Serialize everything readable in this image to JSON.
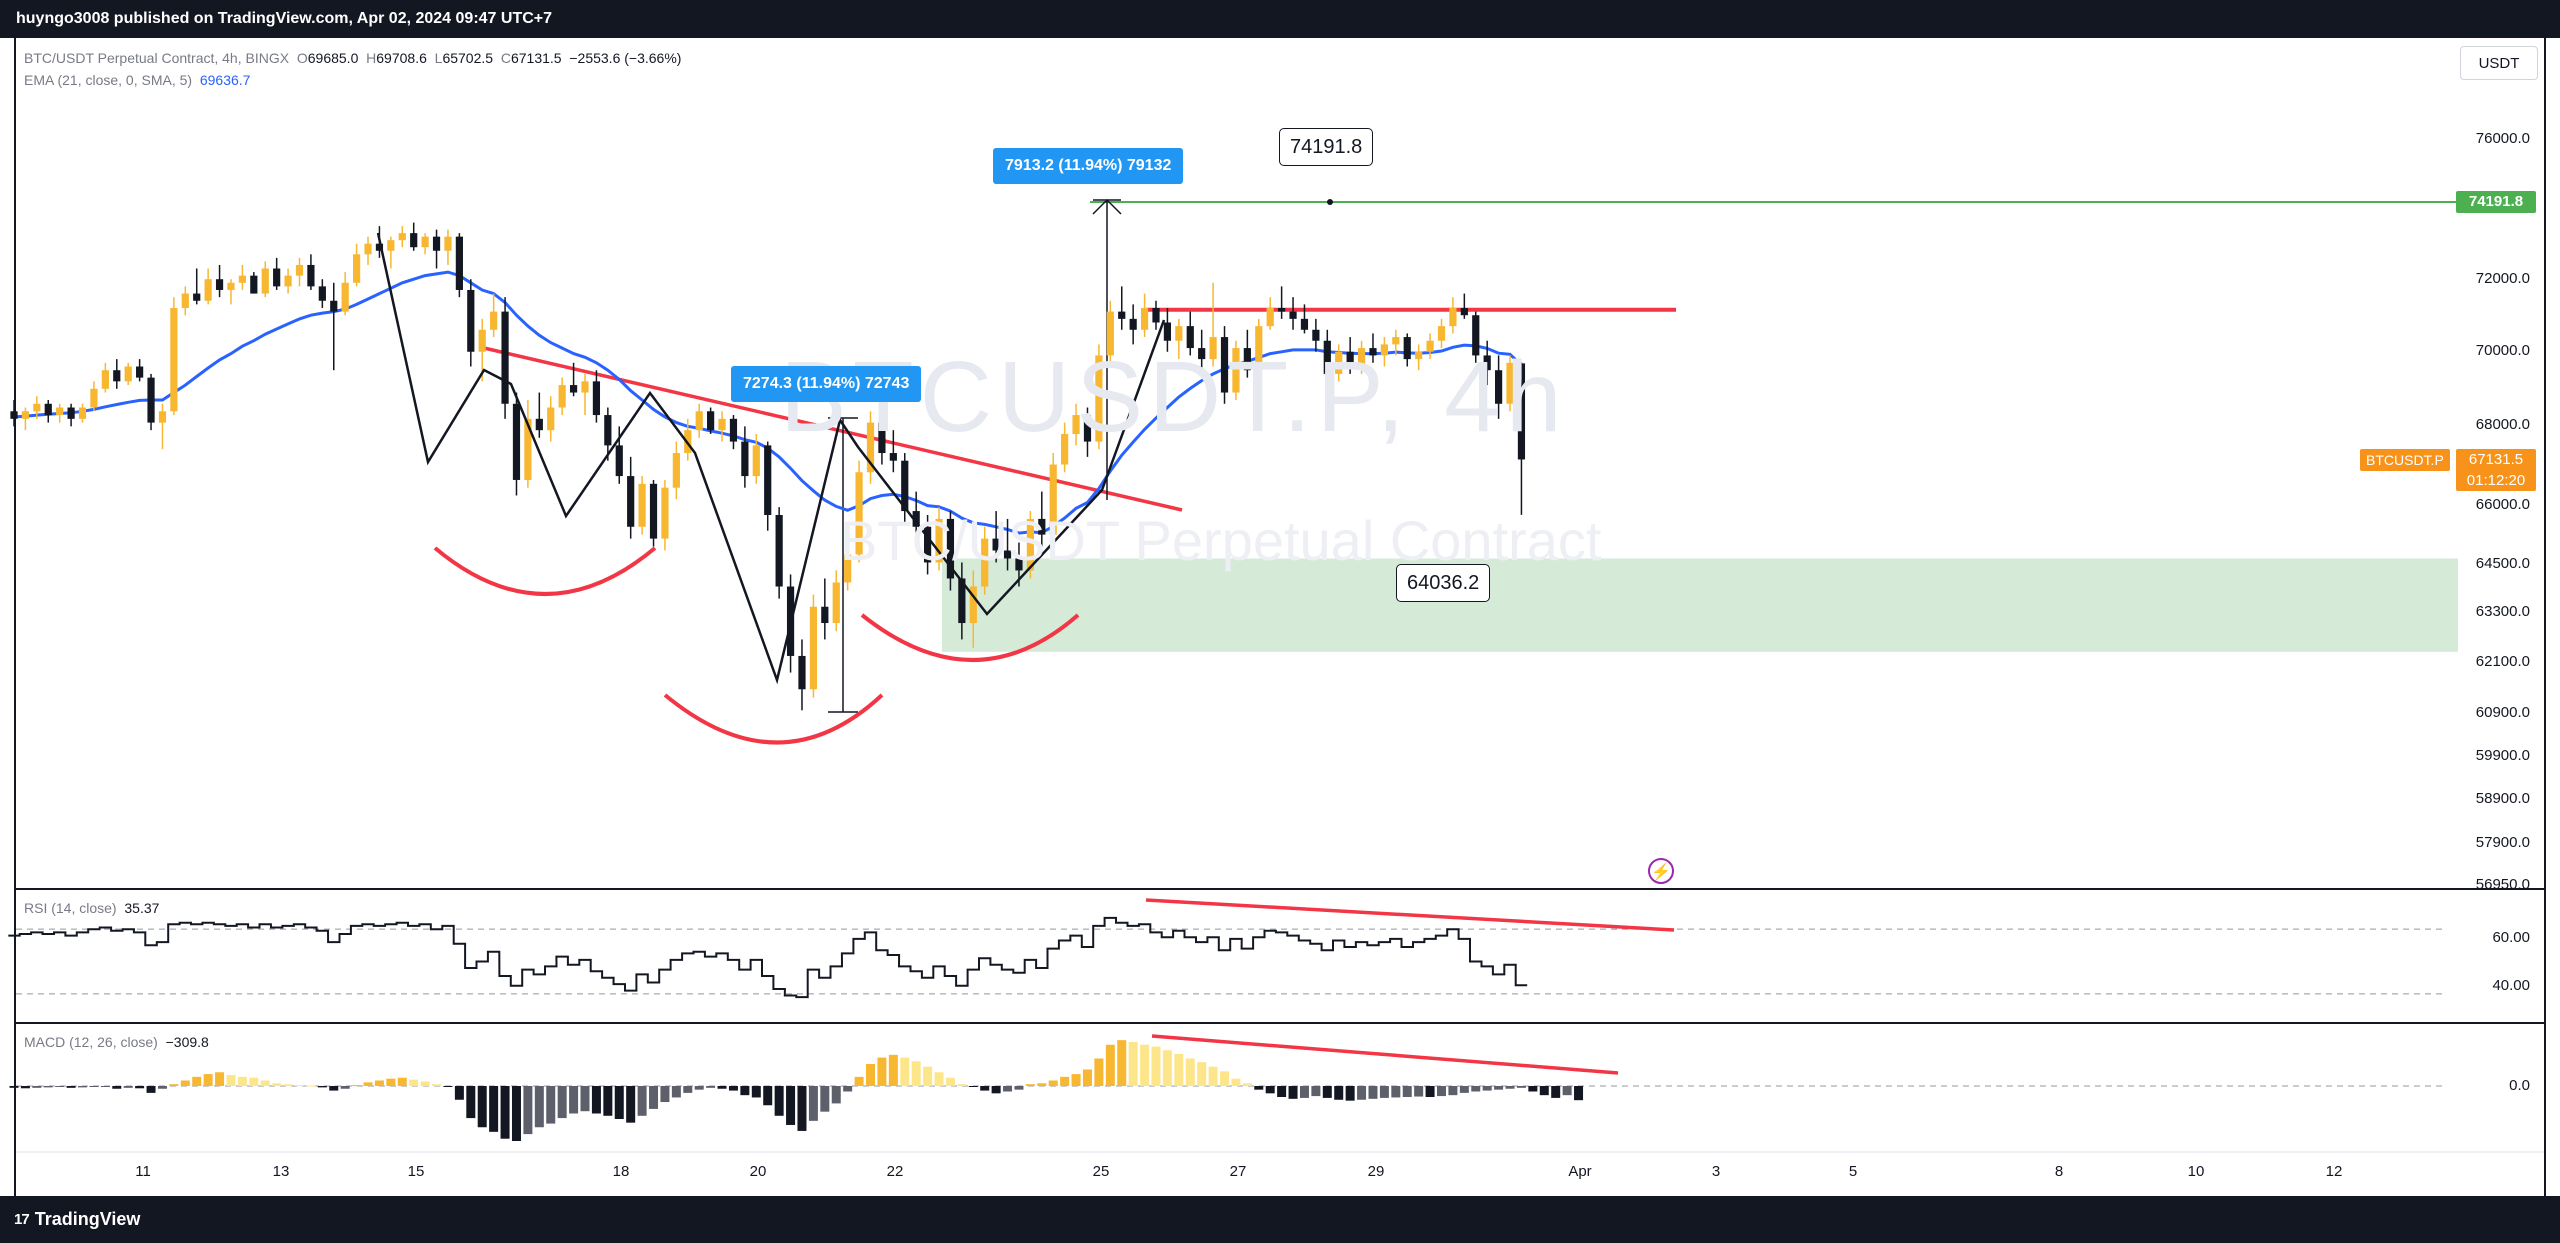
{
  "header": {
    "published": "huyngo3008 published on TradingView.com, Apr 02, 2024 09:47 UTC+7"
  },
  "footer": {
    "brand": "TradingView",
    "brand_mark": "17"
  },
  "legend": {
    "symbol": "BTC/USDT Perpetual Contract, 4h, BINGX",
    "o_label": "O",
    "o": "69685.0",
    "h_label": "H",
    "h": "69708.6",
    "l_label": "L",
    "l": "65702.5",
    "c_label": "C",
    "c": "67131.5",
    "change": "−2553.6 (−3.66%)",
    "ema_label": "EMA (21, close, 0, SMA, 5)",
    "ema_value": "69636.7",
    "rsi_label": "RSI (14, close)",
    "rsi_value": "35.37",
    "macd_label": "MACD (12, 26, close)",
    "macd_value": "−309.8"
  },
  "currency_button": "USDT",
  "watermark": {
    "symbol": "BTCUSDT.P, 4h",
    "name": "BTC/USDT Perpetual Contract"
  },
  "annotations": {
    "callout_top": "7913.2 (11.94%) 79132",
    "callout_mid": "7274.3 (11.94%) 72743",
    "target_box": "74191.8",
    "support_box": "64036.2",
    "target_tag": "74191.8",
    "symbol_tag": "BTCUSDT.P",
    "last_price": "67131.5",
    "countdown": "01:12:20"
  },
  "colors": {
    "up": "#f7b731",
    "down": "#131722",
    "ema": "#2962ff",
    "trend": "#f23645",
    "target_line": "#4caf50",
    "zone": "#d6ead8",
    "measure": "#2196f3"
  },
  "chart_data": {
    "type": "candlestick",
    "title": "BTC/USDT Perpetual Contract, 4h, BINGX",
    "interval": "4h",
    "x_ticks": [
      "11",
      "13",
      "15",
      "18",
      "20",
      "22",
      "25",
      "27",
      "29",
      "Apr",
      "3",
      "5",
      "8",
      "10",
      "12"
    ],
    "price_axis": {
      "ticks": [
        "76000.0",
        "72000.0",
        "70000.0",
        "68000.0",
        "66000.0",
        "64500.0",
        "63300.0",
        "62100.0",
        "60900.0",
        "59900.0",
        "58900.0",
        "57900.0",
        "56950.0"
      ],
      "scale": "log",
      "ylim": [
        56950,
        77500
      ]
    },
    "rsi_axis": {
      "ticks": [
        "60.00",
        "40.00"
      ],
      "bands": [
        70,
        30
      ]
    },
    "macd_axis": {
      "ticks": [
        "0.0"
      ]
    },
    "levels": [
      {
        "name": "target",
        "value": 74191.8
      },
      {
        "name": "resistance",
        "value": 71150
      }
    ],
    "support_zone": {
      "low": 62300,
      "high": 64600
    },
    "candles_ohlc": [
      [
        68400,
        68700,
        68000,
        68200
      ],
      [
        68200,
        68500,
        67900,
        68400
      ],
      [
        68400,
        68800,
        68200,
        68600
      ],
      [
        68600,
        68700,
        68100,
        68300
      ],
      [
        68300,
        68600,
        68100,
        68500
      ],
      [
        68500,
        68600,
        68000,
        68200
      ],
      [
        68200,
        68600,
        68100,
        68500
      ],
      [
        68500,
        69200,
        68400,
        69000
      ],
      [
        69000,
        69700,
        68900,
        69500
      ],
      [
        69500,
        69800,
        69000,
        69200
      ],
      [
        69200,
        69700,
        69100,
        69600
      ],
      [
        69600,
        69800,
        69200,
        69300
      ],
      [
        69300,
        69400,
        67900,
        68100
      ],
      [
        68100,
        68600,
        67400,
        68400
      ],
      [
        68400,
        71500,
        68300,
        71200
      ],
      [
        71200,
        71800,
        71000,
        71600
      ],
      [
        71600,
        72300,
        71300,
        71400
      ],
      [
        71400,
        72300,
        71300,
        72000
      ],
      [
        72000,
        72400,
        71500,
        71700
      ],
      [
        71700,
        72000,
        71300,
        71900
      ],
      [
        71900,
        72400,
        71700,
        72100
      ],
      [
        72100,
        72200,
        71600,
        71600
      ],
      [
        71600,
        72500,
        71500,
        72300
      ],
      [
        72300,
        72600,
        71700,
        71800
      ],
      [
        71800,
        72300,
        71600,
        72100
      ],
      [
        72100,
        72600,
        71800,
        72400
      ],
      [
        72400,
        72700,
        71700,
        71800
      ],
      [
        71800,
        72000,
        71200,
        71400
      ],
      [
        71400,
        71900,
        69500,
        71100
      ],
      [
        71100,
        72200,
        71000,
        71900
      ],
      [
        71900,
        73000,
        71800,
        72700
      ],
      [
        72700,
        73200,
        72400,
        73000
      ],
      [
        73000,
        73500,
        72600,
        72800
      ],
      [
        72800,
        73200,
        72300,
        73100
      ],
      [
        73100,
        73500,
        72900,
        73300
      ],
      [
        73300,
        73600,
        72800,
        72900
      ],
      [
        72900,
        73300,
        72700,
        73200
      ],
      [
        73200,
        73400,
        72300,
        72800
      ],
      [
        72800,
        73400,
        72400,
        73200
      ],
      [
        73200,
        73300,
        71500,
        71700
      ],
      [
        71700,
        72000,
        69600,
        70000
      ],
      [
        70000,
        70900,
        69200,
        70600
      ],
      [
        70600,
        71600,
        70400,
        71100
      ],
      [
        71100,
        71500,
        68200,
        68600
      ],
      [
        68600,
        68900,
        66200,
        66600
      ],
      [
        66600,
        68700,
        66400,
        68200
      ],
      [
        68200,
        68900,
        67700,
        67900
      ],
      [
        67900,
        68800,
        67600,
        68500
      ],
      [
        68500,
        69300,
        68300,
        69100
      ],
      [
        69100,
        69700,
        68800,
        68900
      ],
      [
        68900,
        69400,
        68300,
        69200
      ],
      [
        69200,
        69500,
        68100,
        68300
      ],
      [
        68300,
        68500,
        67100,
        67500
      ],
      [
        67500,
        68000,
        66500,
        66700
      ],
      [
        66700,
        67200,
        65100,
        65400
      ],
      [
        65400,
        66700,
        65200,
        66500
      ],
      [
        66500,
        66600,
        64900,
        65100
      ],
      [
        65100,
        66600,
        64800,
        66400
      ],
      [
        66400,
        67600,
        66100,
        67300
      ],
      [
        67300,
        68200,
        67100,
        67900
      ],
      [
        67900,
        68600,
        67700,
        68400
      ],
      [
        68400,
        68500,
        67800,
        67900
      ],
      [
        67900,
        68400,
        67600,
        68200
      ],
      [
        68200,
        68300,
        67400,
        67600
      ],
      [
        67600,
        68000,
        66400,
        66700
      ],
      [
        66700,
        67800,
        66500,
        67500
      ],
      [
        67500,
        67600,
        65300,
        65700
      ],
      [
        65700,
        65900,
        63600,
        63900
      ],
      [
        63900,
        64200,
        61800,
        62200
      ],
      [
        62200,
        62600,
        60900,
        61400
      ],
      [
        61400,
        63700,
        61200,
        63400
      ],
      [
        63400,
        64100,
        62600,
        63000
      ],
      [
        63000,
        64300,
        62800,
        64000
      ],
      [
        64000,
        64900,
        63800,
        64700
      ],
      [
        64700,
        67100,
        64500,
        66800
      ],
      [
        66800,
        68400,
        66500,
        68100
      ],
      [
        68100,
        68600,
        67000,
        67300
      ],
      [
        67300,
        67900,
        66800,
        67100
      ],
      [
        67100,
        67300,
        65500,
        65800
      ],
      [
        65800,
        66300,
        65100,
        65400
      ],
      [
        65400,
        65700,
        64200,
        64500
      ],
      [
        64500,
        65900,
        64300,
        65600
      ],
      [
        65600,
        65800,
        63800,
        64100
      ],
      [
        64100,
        64500,
        62600,
        63000
      ],
      [
        63000,
        64300,
        62400,
        63900
      ],
      [
        63900,
        65400,
        63700,
        65100
      ],
      [
        65100,
        65800,
        64500,
        64800
      ],
      [
        64800,
        65600,
        64300,
        64600
      ],
      [
        64600,
        65000,
        63900,
        64300
      ],
      [
        64300,
        65800,
        64100,
        65600
      ],
      [
        65600,
        66300,
        64900,
        65200
      ],
      [
        65200,
        67300,
        65000,
        67000
      ],
      [
        67000,
        68100,
        66800,
        67800
      ],
      [
        67800,
        68600,
        67500,
        68300
      ],
      [
        68300,
        68500,
        67200,
        67600
      ],
      [
        67600,
        70200,
        67400,
        69900
      ],
      [
        69900,
        71400,
        69600,
        71100
      ],
      [
        71100,
        71800,
        70600,
        70900
      ],
      [
        70900,
        71300,
        70200,
        70600
      ],
      [
        70600,
        71600,
        70400,
        71200
      ],
      [
        71200,
        71400,
        70600,
        70800
      ],
      [
        70800,
        71200,
        70000,
        70300
      ],
      [
        70300,
        70900,
        69800,
        70700
      ],
      [
        70700,
        71100,
        69900,
        70100
      ],
      [
        70100,
        70600,
        69500,
        69800
      ],
      [
        69800,
        71900,
        69600,
        70400
      ],
      [
        70400,
        70700,
        68600,
        68900
      ],
      [
        68900,
        70300,
        68700,
        70100
      ],
      [
        70100,
        70600,
        69300,
        69500
      ],
      [
        69500,
        70900,
        69400,
        70700
      ],
      [
        70700,
        71500,
        70600,
        71200
      ],
      [
        71200,
        71800,
        70900,
        71100
      ],
      [
        71100,
        71500,
        70600,
        70900
      ],
      [
        70900,
        71300,
        70500,
        70600
      ],
      [
        70600,
        70900,
        70000,
        70300
      ],
      [
        70300,
        70600,
        69100,
        69400
      ],
      [
        69400,
        70200,
        69200,
        70000
      ],
      [
        70000,
        70400,
        69400,
        69600
      ],
      [
        69600,
        70300,
        69400,
        70100
      ],
      [
        70100,
        70500,
        69700,
        69900
      ],
      [
        69900,
        70400,
        69600,
        70200
      ],
      [
        70200,
        70600,
        69900,
        70400
      ],
      [
        70400,
        70500,
        69600,
        69800
      ],
      [
        69800,
        70200,
        69500,
        70000
      ],
      [
        70000,
        70500,
        69800,
        70300
      ],
      [
        70300,
        70900,
        70100,
        70700
      ],
      [
        70700,
        71500,
        70500,
        71200
      ],
      [
        71200,
        71600,
        70900,
        71000
      ],
      [
        71000,
        71100,
        69700,
        69900
      ],
      [
        69900,
        70300,
        69100,
        69500
      ],
      [
        69500,
        69900,
        68200,
        68600
      ],
      [
        68600,
        69900,
        68400,
        69700
      ],
      [
        69685,
        69709,
        65703,
        67132
      ]
    ],
    "ema21_points": [
      68250,
      68270,
      68300,
      68320,
      68340,
      68360,
      68400,
      68450,
      68520,
      68580,
      68640,
      68690,
      68700,
      68700,
      68900,
      69100,
      69330,
      69560,
      69780,
      69950,
      70150,
      70300,
      70480,
      70620,
      70760,
      70900,
      71000,
      71060,
      71100,
      71170,
      71300,
      71450,
      71600,
      71750,
      71900,
      72000,
      72100,
      72150,
      72200,
      72100,
      71900,
      71700,
      71600,
      71350,
      71000,
      70700,
      70450,
      70250,
      70100,
      69950,
      69850,
      69700,
      69500,
      69250,
      68950,
      68700,
      68450,
      68250,
      68100,
      68000,
      67950,
      67880,
      67820,
      67750,
      67650,
      67580,
      67430,
      67200,
      66900,
      66580,
      66320,
      66080,
      65920,
      65820,
      65940,
      66120,
      66200,
      66230,
      66170,
      66070,
      65940,
      65910,
      65800,
      65620,
      65500,
      65460,
      65400,
      65330,
      65240,
      65270,
      65250,
      65410,
      65620,
      65870,
      66020,
      66380,
      66830,
      67240,
      67590,
      67920,
      68220,
      68500,
      68780,
      69010,
      69220,
      69400,
      69540,
      69650,
      69740,
      69840,
      69950,
      70000,
      70050,
      70050,
      70050,
      70000,
      69980,
      69960,
      69950,
      69950,
      69960,
      69990,
      69970,
      69960,
      69980,
      70020,
      70120,
      70180,
      70160,
      70090,
      69960,
      69930,
      69637
    ],
    "rsi_values": [
      66,
      67,
      68,
      67,
      68,
      66,
      68,
      70,
      71,
      69,
      70,
      68,
      60,
      62,
      73,
      74,
      73,
      74,
      73,
      72,
      73,
      71,
      73,
      71,
      72,
      73,
      71,
      69,
      62,
      67,
      72,
      73,
      72,
      73,
      74,
      72,
      73,
      70,
      72,
      61,
      46,
      50,
      56,
      41,
      35,
      45,
      42,
      47,
      53,
      48,
      51,
      44,
      40,
      36,
      32,
      42,
      37,
      45,
      51,
      55,
      56,
      53,
      55,
      51,
      45,
      51,
      41,
      33,
      29,
      28,
      45,
      40,
      47,
      55,
      64,
      68,
      57,
      54,
      47,
      44,
      40,
      47,
      41,
      35,
      45,
      52,
      48,
      45,
      43,
      51,
      46,
      58,
      63,
      66,
      59,
      72,
      77,
      74,
      72,
      73,
      68,
      65,
      69,
      65,
      62,
      65,
      57,
      64,
      58,
      65,
      69,
      68,
      66,
      63,
      61,
      57,
      63,
      59,
      62,
      60,
      62,
      64,
      59,
      62,
      64,
      66,
      70,
      64,
      50,
      47,
      42,
      48,
      35.37
    ],
    "macd_hist": [
      -40,
      -50,
      -40,
      -30,
      -20,
      -40,
      -30,
      -20,
      -10,
      -60,
      -40,
      -50,
      -150,
      -60,
      40,
      120,
      200,
      260,
      300,
      240,
      200,
      180,
      120,
      60,
      40,
      20,
      10,
      -30,
      -100,
      -60,
      20,
      80,
      120,
      160,
      180,
      140,
      100,
      40,
      -20,
      -300,
      -700,
      -900,
      -1000,
      -1150,
      -1200,
      -1050,
      -900,
      -820,
      -700,
      -600,
      -550,
      -600,
      -650,
      -720,
      -800,
      -650,
      -500,
      -350,
      -250,
      -150,
      -80,
      -40,
      -60,
      -100,
      -200,
      -250,
      -420,
      -650,
      -850,
      -980,
      -760,
      -560,
      -380,
      -120,
      200,
      480,
      620,
      680,
      620,
      540,
      420,
      300,
      180,
      40,
      -20,
      -100,
      -160,
      -120,
      -80,
      40,
      60,
      120,
      200,
      260,
      360,
      600,
      900,
      1000,
      960,
      900,
      860,
      780,
      700,
      600,
      520,
      420,
      320,
      160,
      60,
      -80,
      -160,
      -240,
      -280,
      -260,
      -220,
      -260,
      -300,
      -320,
      -300,
      -280,
      -260,
      -250,
      -240,
      -230,
      -240,
      -220,
      -200,
      -150,
      -120,
      -100,
      -80,
      -60,
      -40,
      -120,
      -200,
      -260,
      -200,
      -309.8
    ]
  }
}
